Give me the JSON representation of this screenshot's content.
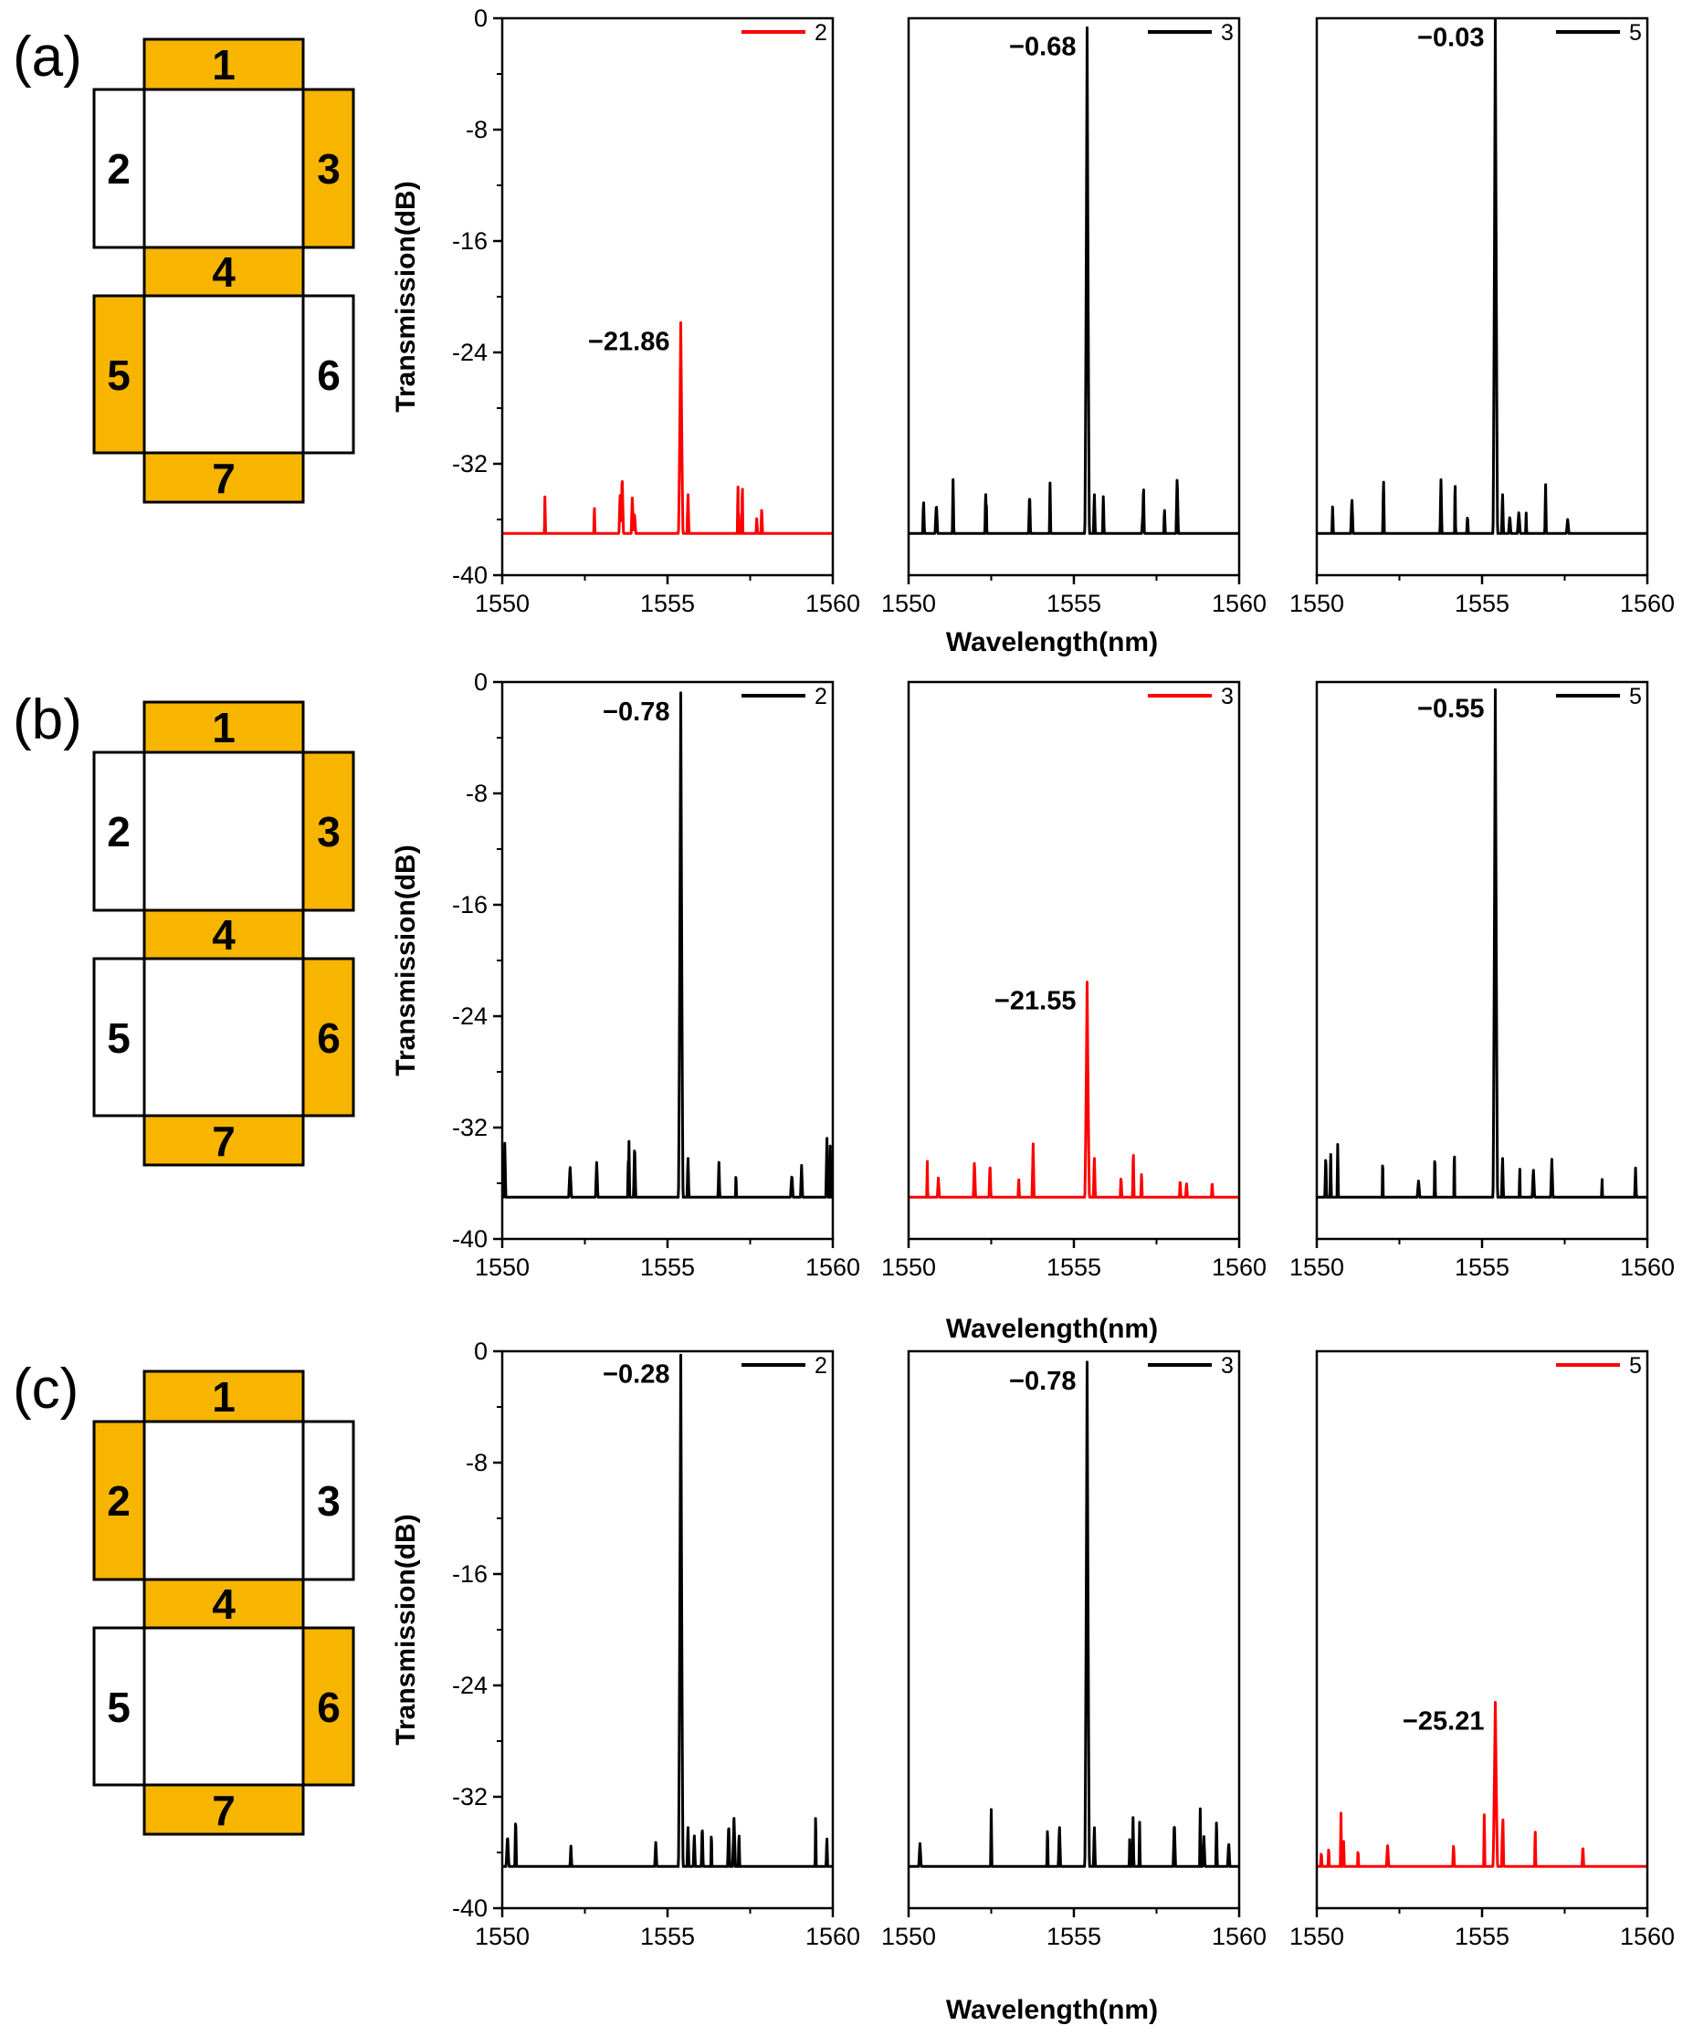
{
  "colors": {
    "active_segment": "#F7B500",
    "inactive_segment": "#FFFFFF",
    "segment_border": "#000000",
    "highlight_trace": "#FF0000",
    "normal_trace": "#000000"
  },
  "rows": [
    {
      "panel_label": "(a)",
      "segments": [
        {
          "num": "1",
          "active": true
        },
        {
          "num": "2",
          "active": false
        },
        {
          "num": "3",
          "active": true
        },
        {
          "num": "4",
          "active": true
        },
        {
          "num": "5",
          "active": true
        },
        {
          "num": "6",
          "active": false
        },
        {
          "num": "7",
          "active": true
        }
      ]
    },
    {
      "panel_label": "(b)",
      "segments": [
        {
          "num": "1",
          "active": true
        },
        {
          "num": "2",
          "active": false
        },
        {
          "num": "3",
          "active": true
        },
        {
          "num": "4",
          "active": true
        },
        {
          "num": "5",
          "active": false
        },
        {
          "num": "6",
          "active": true
        },
        {
          "num": "7",
          "active": true
        }
      ]
    },
    {
      "panel_label": "(c)",
      "segments": [
        {
          "num": "1",
          "active": true
        },
        {
          "num": "2",
          "active": true
        },
        {
          "num": "3",
          "active": false
        },
        {
          "num": "4",
          "active": true
        },
        {
          "num": "5",
          "active": false
        },
        {
          "num": "6",
          "active": true
        },
        {
          "num": "7",
          "active": true
        }
      ]
    }
  ],
  "chart_data": {
    "type": "line",
    "xlabel": "Wavelength(nm)",
    "ylabel": "Transmission(dB)",
    "xlim": [
      1550,
      1560
    ],
    "ylim": [
      -40,
      0
    ],
    "xticks": [
      "1550",
      "1555",
      "1560"
    ],
    "yticks": [
      "0",
      "-8",
      "-16",
      "-24",
      "-32",
      "-40"
    ],
    "panels": [
      {
        "row": 0,
        "col": 0,
        "legend": "2",
        "highlight": true,
        "peak_x": 1555.4,
        "peak_db": -21.86,
        "peak_label": "−21.86",
        "baseline_db": -37,
        "seed": 11
      },
      {
        "row": 0,
        "col": 1,
        "legend": "3",
        "highlight": false,
        "peak_x": 1555.4,
        "peak_db": -0.68,
        "peak_label": "−0.68",
        "baseline_db": -37,
        "seed": 23
      },
      {
        "row": 0,
        "col": 2,
        "legend": "5",
        "highlight": false,
        "peak_x": 1555.4,
        "peak_db": -0.03,
        "peak_label": "−0.03",
        "baseline_db": -37,
        "seed": 37
      },
      {
        "row": 1,
        "col": 0,
        "legend": "2",
        "highlight": false,
        "peak_x": 1555.4,
        "peak_db": -0.78,
        "peak_label": "−0.78",
        "baseline_db": -37,
        "seed": 41
      },
      {
        "row": 1,
        "col": 1,
        "legend": "3",
        "highlight": true,
        "peak_x": 1555.4,
        "peak_db": -21.55,
        "peak_label": "−21.55",
        "baseline_db": -37,
        "seed": 53
      },
      {
        "row": 1,
        "col": 2,
        "legend": "5",
        "highlight": false,
        "peak_x": 1555.4,
        "peak_db": -0.55,
        "peak_label": "−0.55",
        "baseline_db": -37,
        "seed": 67
      },
      {
        "row": 2,
        "col": 0,
        "legend": "2",
        "highlight": false,
        "peak_x": 1555.4,
        "peak_db": -0.28,
        "peak_label": "−0.28",
        "baseline_db": -37,
        "seed": 71
      },
      {
        "row": 2,
        "col": 1,
        "legend": "3",
        "highlight": false,
        "peak_x": 1555.4,
        "peak_db": -0.78,
        "peak_label": "−0.78",
        "baseline_db": -37,
        "seed": 83
      },
      {
        "row": 2,
        "col": 2,
        "legend": "5",
        "highlight": true,
        "peak_x": 1555.4,
        "peak_db": -25.21,
        "peak_label": "−25.21",
        "baseline_db": -37,
        "seed": 97
      }
    ]
  }
}
